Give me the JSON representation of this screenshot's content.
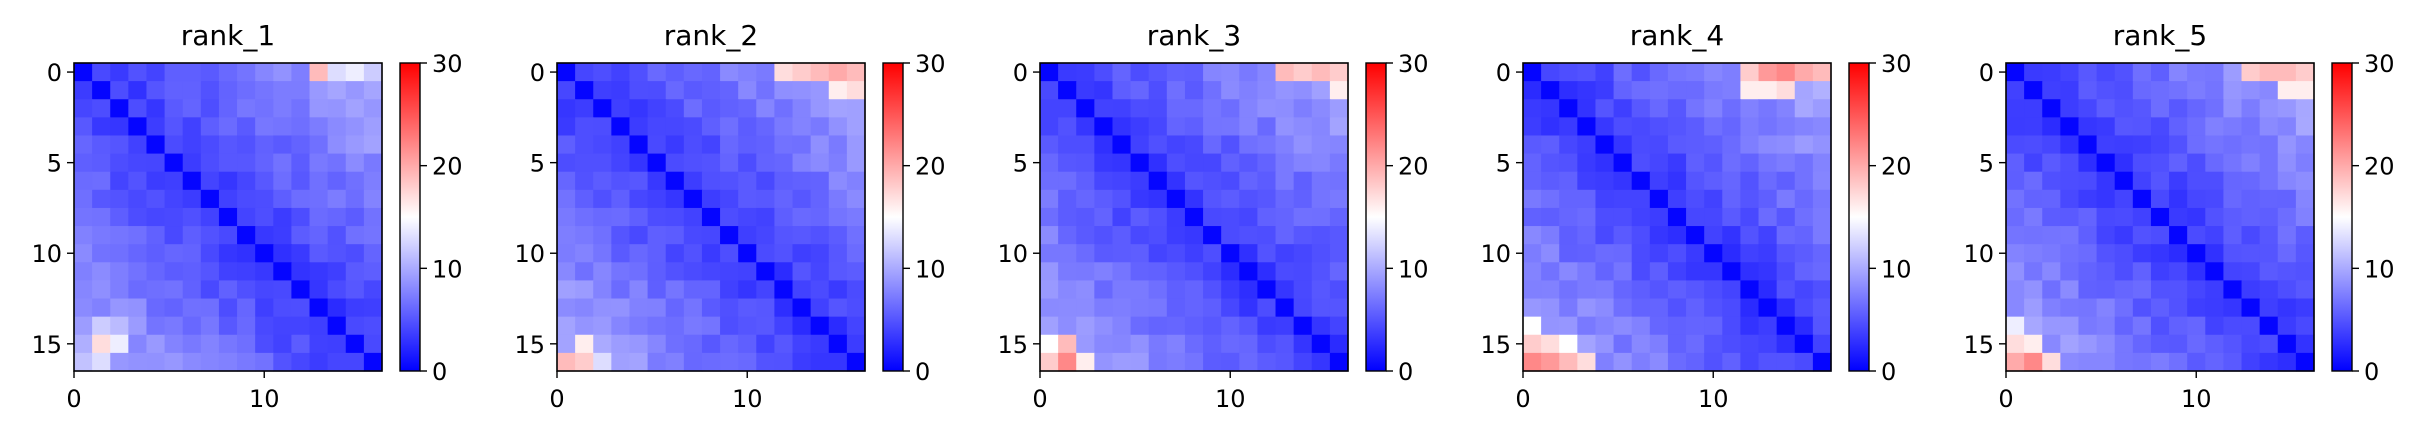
{
  "chart_data": [
    {
      "type": "heatmap",
      "title": "rank_1",
      "rows": 17,
      "cols": 17,
      "xticks": [
        0,
        10
      ],
      "yticks": [
        0,
        5,
        10,
        15
      ],
      "colorbar": {
        "min": 0,
        "max": 30,
        "ticks": [
          0,
          10,
          20,
          30
        ],
        "colormap": "bwr",
        "colors": [
          "#0000ff",
          "#ffffff",
          "#ff0000"
        ]
      },
      "hotspots": [
        [
          0,
          13,
          19
        ],
        [
          0,
          14,
          13
        ],
        [
          0,
          15,
          14
        ],
        [
          0,
          16,
          12
        ],
        [
          15,
          1,
          17
        ],
        [
          15,
          2,
          14
        ],
        [
          16,
          1,
          13
        ],
        [
          14,
          1,
          12
        ],
        [
          14,
          2,
          11
        ]
      ]
    },
    {
      "type": "heatmap",
      "title": "rank_2",
      "rows": 17,
      "cols": 17,
      "xticks": [
        0,
        10
      ],
      "yticks": [
        0,
        5,
        10,
        15
      ],
      "colorbar": {
        "min": 0,
        "max": 30,
        "ticks": [
          0,
          10,
          20,
          30
        ],
        "colormap": "bwr",
        "colors": [
          "#0000ff",
          "#ffffff",
          "#ff0000"
        ]
      },
      "hotspots": [
        [
          0,
          12,
          17
        ],
        [
          0,
          13,
          18
        ],
        [
          0,
          14,
          19
        ],
        [
          0,
          15,
          20
        ],
        [
          0,
          16,
          19
        ],
        [
          1,
          15,
          16
        ],
        [
          1,
          16,
          17
        ],
        [
          16,
          0,
          19
        ],
        [
          16,
          1,
          18
        ],
        [
          15,
          1,
          16
        ],
        [
          16,
          2,
          13
        ]
      ]
    },
    {
      "type": "heatmap",
      "title": "rank_3",
      "rows": 17,
      "cols": 17,
      "xticks": [
        0,
        10
      ],
      "yticks": [
        0,
        5,
        10,
        15
      ],
      "colorbar": {
        "min": 0,
        "max": 30,
        "ticks": [
          0,
          10,
          20,
          30
        ],
        "colormap": "bwr",
        "colors": [
          "#0000ff",
          "#ffffff",
          "#ff0000"
        ]
      },
      "hotspots": [
        [
          0,
          13,
          19
        ],
        [
          0,
          14,
          18
        ],
        [
          0,
          15,
          19
        ],
        [
          0,
          16,
          18
        ],
        [
          1,
          16,
          16
        ],
        [
          16,
          1,
          22
        ],
        [
          16,
          0,
          18
        ],
        [
          15,
          1,
          19
        ],
        [
          15,
          0,
          15
        ],
        [
          16,
          2,
          16
        ]
      ]
    },
    {
      "type": "heatmap",
      "title": "rank_4",
      "rows": 17,
      "cols": 17,
      "xticks": [
        0,
        10
      ],
      "yticks": [
        0,
        5,
        10,
        15
      ],
      "colorbar": {
        "min": 0,
        "max": 30,
        "ticks": [
          0,
          10,
          20,
          30
        ],
        "colormap": "bwr",
        "colors": [
          "#0000ff",
          "#ffffff",
          "#ff0000"
        ]
      },
      "hotspots": [
        [
          0,
          12,
          18
        ],
        [
          0,
          13,
          21
        ],
        [
          0,
          14,
          22
        ],
        [
          0,
          15,
          20
        ],
        [
          0,
          16,
          19
        ],
        [
          1,
          12,
          16
        ],
        [
          1,
          13,
          16
        ],
        [
          1,
          14,
          17
        ],
        [
          16,
          0,
          22
        ],
        [
          16,
          1,
          21
        ],
        [
          16,
          2,
          19
        ],
        [
          16,
          3,
          17
        ],
        [
          15,
          0,
          18
        ],
        [
          15,
          1,
          17
        ],
        [
          15,
          2,
          15
        ],
        [
          14,
          0,
          15
        ]
      ]
    },
    {
      "type": "heatmap",
      "title": "rank_5",
      "rows": 17,
      "cols": 17,
      "xticks": [
        0,
        10
      ],
      "yticks": [
        0,
        5,
        10,
        15
      ],
      "colorbar": {
        "min": 0,
        "max": 30,
        "ticks": [
          0,
          10,
          20,
          30
        ],
        "colormap": "bwr",
        "colors": [
          "#0000ff",
          "#ffffff",
          "#ff0000"
        ]
      },
      "hotspots": [
        [
          0,
          13,
          18
        ],
        [
          0,
          14,
          19
        ],
        [
          0,
          15,
          19
        ],
        [
          0,
          16,
          18
        ],
        [
          1,
          15,
          16
        ],
        [
          1,
          16,
          16
        ],
        [
          16,
          0,
          20
        ],
        [
          16,
          1,
          22
        ],
        [
          16,
          2,
          17
        ],
        [
          15,
          0,
          17
        ],
        [
          15,
          1,
          16
        ],
        [
          14,
          0,
          14
        ]
      ]
    }
  ]
}
